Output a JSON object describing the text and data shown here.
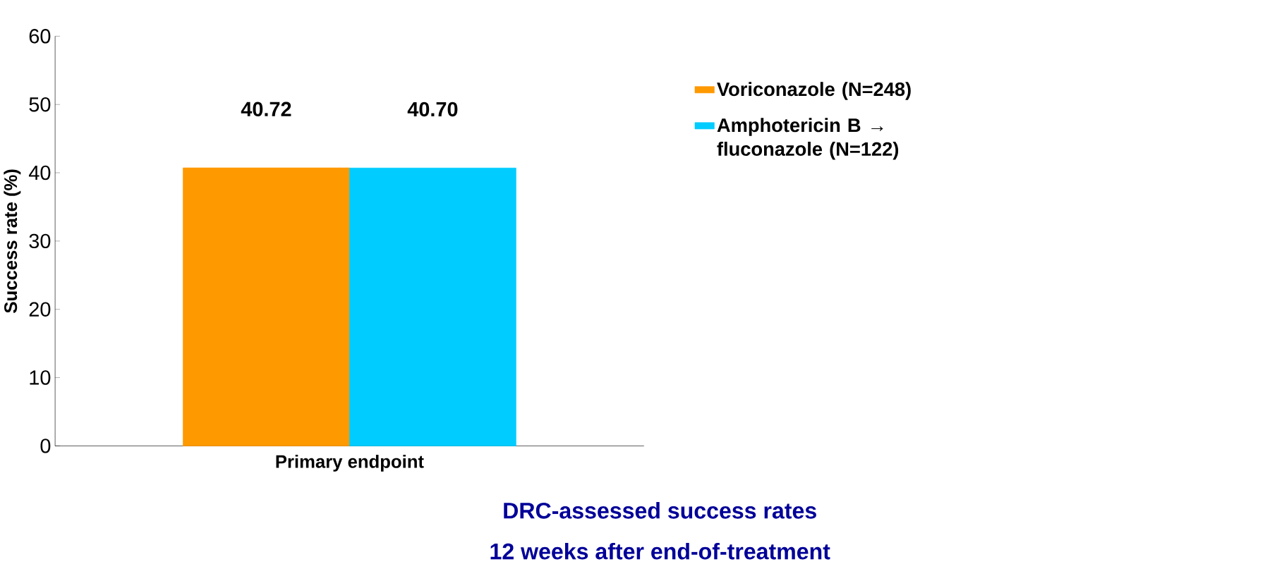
{
  "chart_data": {
    "type": "bar",
    "ylabel": "Success rate (%)",
    "categories": [
      "Primary endpoint"
    ],
    "series": [
      {
        "name": "Voriconazole (N=248)",
        "color": "#ff9900",
        "values": [
          40.72
        ],
        "value_labels": [
          "40.72"
        ]
      },
      {
        "name": "Amphotericin B → fluconazole (N=122)",
        "color": "#00ccff",
        "values": [
          40.7
        ],
        "value_labels": [
          "40.70"
        ]
      }
    ],
    "ylim": [
      0,
      60
    ],
    "yticks": [
      0,
      10,
      20,
      30,
      40,
      50,
      60
    ],
    "legend": "right",
    "annotations": [
      "DRC-assessed success rates",
      "12 weeks after end-of-treatment"
    ]
  }
}
